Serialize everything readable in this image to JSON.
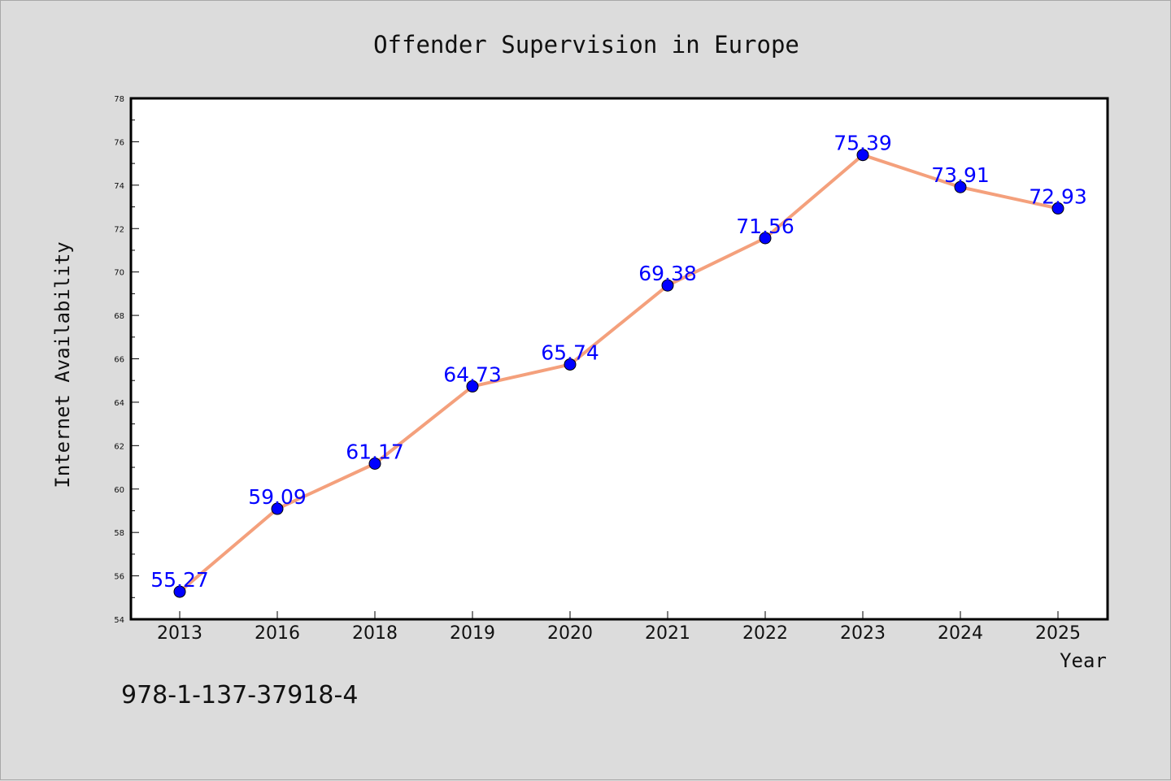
{
  "chart_data": {
    "type": "line",
    "title": "Offender Supervision in Europe",
    "xlabel": "Year",
    "ylabel": "Internet Availability",
    "categories": [
      "2013",
      "2016",
      "2018",
      "2019",
      "2020",
      "2021",
      "2022",
      "2023",
      "2024",
      "2025"
    ],
    "series": [
      {
        "values": [
          55.27,
          59.09,
          61.17,
          64.73,
          65.74,
          69.38,
          71.56,
          75.39,
          73.91,
          72.93
        ]
      }
    ],
    "data_labels": [
      "55.27",
      "59.09",
      "61.17",
      "64.73",
      "65.74",
      "69.38",
      "71.56",
      "75.39",
      "73.91",
      "72.93"
    ],
    "ylim": [
      54,
      78
    ],
    "yticks": [
      54,
      56,
      58,
      60,
      62,
      64,
      66,
      68,
      70,
      72,
      74,
      76,
      78
    ],
    "grid": false,
    "colors": {
      "line": "#f4a07c",
      "marker": "#0000ff",
      "label": "#0000ff",
      "background": "#dcdcdc",
      "plot_background": "#ffffff"
    }
  },
  "footer_text": "978-1-137-37918-4"
}
